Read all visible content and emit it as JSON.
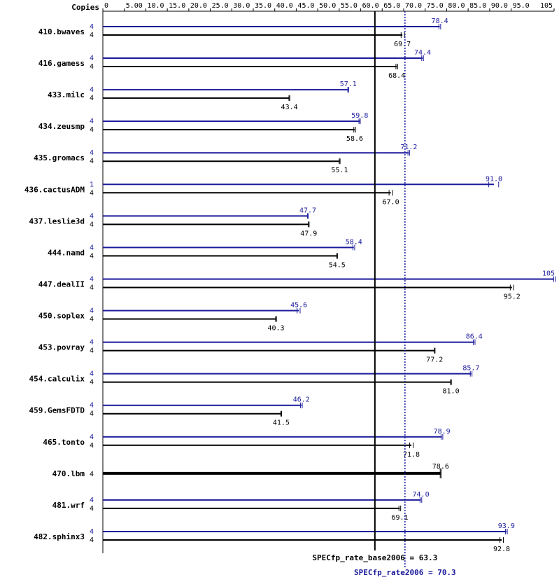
{
  "chart_data": {
    "type": "bar",
    "orientation": "horizontal",
    "copies_header": "Copies",
    "x_ticks": [
      "0",
      "5.00",
      "10.0",
      "15.0",
      "20.0",
      "25.0",
      "30.0",
      "35.0",
      "40.0",
      "45.0",
      "50.0",
      "55.0",
      "60.0",
      "65.0",
      "70.0",
      "75.0",
      "80.0",
      "85.0",
      "90.0",
      "95.0",
      "105"
    ],
    "x_tick_values": [
      0,
      5,
      10,
      15,
      20,
      25,
      30,
      35,
      40,
      45,
      50,
      55,
      60,
      65,
      70,
      75,
      80,
      85,
      90,
      95,
      105
    ],
    "xlim": [
      0,
      105
    ],
    "categories": [
      "410.bwaves",
      "416.gamess",
      "433.milc",
      "434.zeusmp",
      "435.gromacs",
      "436.cactusADM",
      "437.leslie3d",
      "444.namd",
      "447.dealII",
      "450.soplex",
      "453.povray",
      "454.calculix",
      "459.GemsFDTD",
      "465.tonto",
      "470.lbm",
      "481.wrf",
      "482.sphinx3"
    ],
    "series": [
      {
        "key": "peak",
        "color": "#1a1a9c",
        "copies": [
          "4",
          "4",
          "4",
          "4",
          "4",
          "1",
          "4",
          "4",
          "4",
          "4",
          "4",
          "4",
          "4",
          "4",
          "",
          "4",
          "4"
        ],
        "values": [
          78.4,
          74.4,
          57.1,
          59.8,
          71.2,
          91.0,
          47.7,
          58.4,
          105,
          45.6,
          86.4,
          85.7,
          46.2,
          78.9,
          null,
          74.0,
          93.9
        ],
        "value_labels": [
          "78.4",
          "74.4",
          "57.1",
          "59.8",
          "71.2",
          "91.0",
          "47.7",
          "58.4",
          "105",
          "45.6",
          "86.4",
          "85.7",
          "46.2",
          "78.9",
          "",
          "74.0",
          "93.9"
        ],
        "ranges": [
          [
            78.2,
            78.6
          ],
          [
            74.2,
            74.6
          ],
          [
            57.0,
            57.2
          ],
          [
            59.6,
            59.9
          ],
          [
            71.0,
            71.4
          ],
          [
            89.8,
            92.1
          ],
          [
            47.6,
            47.8
          ],
          [
            58.2,
            58.6
          ],
          [
            104.9,
            105.3
          ],
          [
            45.2,
            45.9
          ],
          [
            86.2,
            86.6
          ],
          [
            85.5,
            85.9
          ],
          [
            46.0,
            46.4
          ],
          [
            78.7,
            79.1
          ],
          null,
          [
            73.8,
            74.2
          ],
          [
            93.7,
            94.1
          ]
        ]
      },
      {
        "key": "base",
        "color": "#000000",
        "copies": [
          "4",
          "4",
          "4",
          "4",
          "4",
          "4",
          "4",
          "4",
          "4",
          "4",
          "4",
          "4",
          "4",
          "4",
          "4",
          "4",
          "4"
        ],
        "values": [
          69.7,
          68.4,
          43.4,
          58.6,
          55.1,
          67.0,
          47.9,
          54.5,
          95.2,
          40.3,
          77.2,
          81.0,
          41.5,
          71.8,
          78.6,
          69.1,
          92.8
        ],
        "value_labels": [
          "69.7",
          "68.4",
          "43.4",
          "58.6",
          "55.1",
          "67.0",
          "47.9",
          "54.5",
          "95.2",
          "40.3",
          "77.2",
          "81.0",
          "41.5",
          "71.8",
          "78.6",
          "69.1",
          "92.8"
        ],
        "ranges": [
          [
            69.4,
            70.2
          ],
          [
            68.2,
            68.6
          ],
          [
            43.3,
            43.5
          ],
          [
            58.4,
            58.8
          ],
          [
            55.0,
            55.2
          ],
          [
            66.6,
            67.4
          ],
          [
            47.8,
            48.0
          ],
          [
            54.4,
            54.6
          ],
          [
            94.8,
            95.6
          ],
          [
            40.2,
            40.4
          ],
          [
            77.1,
            77.3
          ],
          [
            80.9,
            81.1
          ],
          [
            41.4,
            41.6
          ],
          [
            71.4,
            72.2
          ],
          [
            78.5,
            78.7
          ],
          [
            68.9,
            69.3
          ],
          [
            92.4,
            93.2
          ]
        ]
      }
    ],
    "merged_label_row": 14,
    "reference_lines": [
      {
        "key": "base",
        "label": "SPECfp_rate_base2006 = 63.3",
        "value": 63.3,
        "color": "#000000",
        "style": "solid"
      },
      {
        "key": "peak",
        "label": "SPECfp_rate2006 = 70.3",
        "value": 70.3,
        "color": "#1a1a9c",
        "style": "dotted"
      }
    ],
    "grid": false
  }
}
